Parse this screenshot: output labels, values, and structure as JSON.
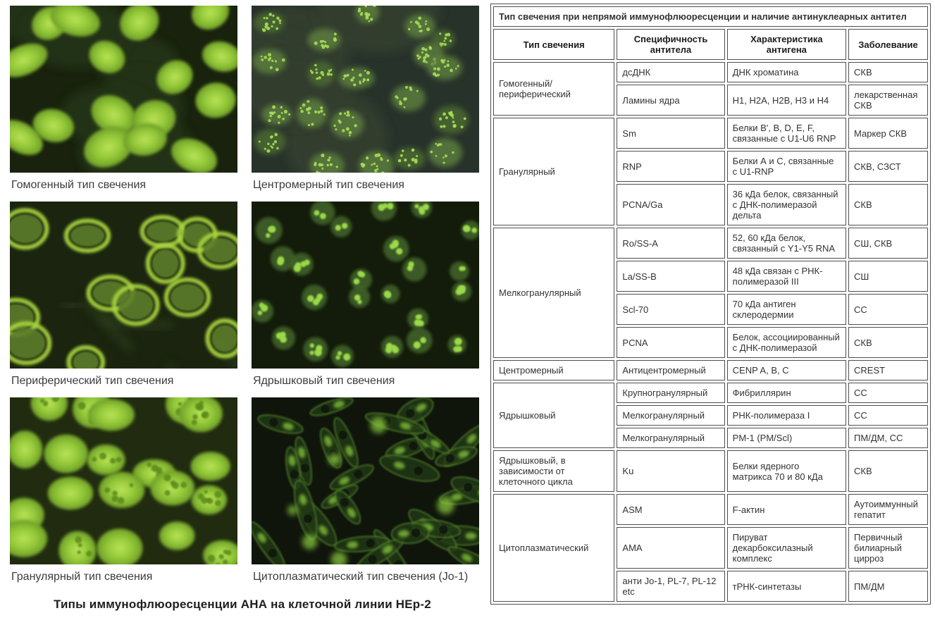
{
  "colors": {
    "fluorescence_bright": "#a8d83c",
    "fluorescence_mid": "#6f9a2f",
    "fluorescence_dim": "#3f6326",
    "micrograph_bg": "#141d0c",
    "table_border": "#4f4f4f",
    "text": "#333333",
    "page_bg": "#ffffff"
  },
  "left_panel": {
    "panels": [
      {
        "caption": "Гомогенный тип свечения",
        "pattern": "homogeneous"
      },
      {
        "caption": "Центромерный тип свечения",
        "pattern": "centromere"
      },
      {
        "caption": "Периферический тип свечения",
        "pattern": "peripheral"
      },
      {
        "caption": "Ядрышковый тип свечения",
        "pattern": "nucleolar"
      },
      {
        "caption": "Гранулярный тип свечения",
        "pattern": "granular"
      },
      {
        "caption": "Цитоплазматический тип свечения (Jo-1)",
        "pattern": "cytoplasmic"
      }
    ],
    "footer_title": "Типы иммунофлюоресценции АНА на клеточной линии HEp-2"
  },
  "table": {
    "title": "Тип свечения при непрямой иммунофлюоресценции и наличие антинуклеарных антител",
    "headers": [
      "Тип свечения",
      "Специфичность антитела",
      "Характеристика антигена",
      "Заболевание"
    ],
    "groups": [
      {
        "type": "Гомогенный/ периферический",
        "rows": [
          [
            "дсДНК",
            "ДНК хроматина",
            "СКВ"
          ],
          [
            "Ламины ядра",
            "H1, H2A, H2B, H3 и H4",
            "лекарственная СКВ"
          ]
        ]
      },
      {
        "type": "Гранулярный",
        "rows": [
          [
            "Sm",
            "Белки B', B, D, E, F, связанные с U1-U6 RNP",
            "Маркер СКВ"
          ],
          [
            "RNP",
            "Белки А и С, связанные с U1-RNP",
            "СКВ, СЗСТ"
          ],
          [
            "PCNA/Ga",
            "36 кДа белок, связанный с ДНК-полимеразой дельта",
            "СКВ"
          ]
        ]
      },
      {
        "type": "Мелкогранулярный",
        "rows": [
          [
            "Ro/SS-A",
            "52, 60 кДа белок, связанный с Y1-Y5 RNA",
            "СШ, СКВ"
          ],
          [
            "La/SS-B",
            "48 кДа связан с РНК-полимеразой III",
            "СШ"
          ],
          [
            "Scl-70",
            "70 кДа антиген склеродермии",
            "СС"
          ],
          [
            "PCNA",
            "Белок, ассоциированный с ДНК-полимеразой",
            "СКВ"
          ]
        ]
      },
      {
        "type": "Центромерный",
        "rows": [
          [
            "Антицентромерный",
            "CENP A, B, C",
            "CREST"
          ]
        ]
      },
      {
        "type": "Ядрышковый",
        "rows": [
          [
            "Крупногранулярный",
            "Фибриллярин",
            "СС"
          ],
          [
            "Мелкогранулярный",
            "РНК-полимераза I",
            "СС"
          ],
          [
            "Мелкогранулярный",
            "PM-1 (PM/Scl)",
            "ПМ/ДМ, СС"
          ]
        ]
      },
      {
        "type": "Ядрышковый, в зависимости от клеточного цикла",
        "rows": [
          [
            "Ku",
            "Белки ядерного матрикса 70 и 80 кДа",
            "СКВ"
          ]
        ]
      },
      {
        "type": "Цитоплазматический",
        "rows": [
          [
            "ASM",
            "F-актин",
            "Аутоиммунный гепатит"
          ],
          [
            "AMA",
            "Пируват декарбоксилазный комплекс",
            "Первичный билиарный цирроз"
          ],
          [
            "анти Jo-1, PL-7, PL-12 etc",
            "тРНК-синтетазы",
            "ПМ/ДМ"
          ]
        ]
      }
    ]
  }
}
